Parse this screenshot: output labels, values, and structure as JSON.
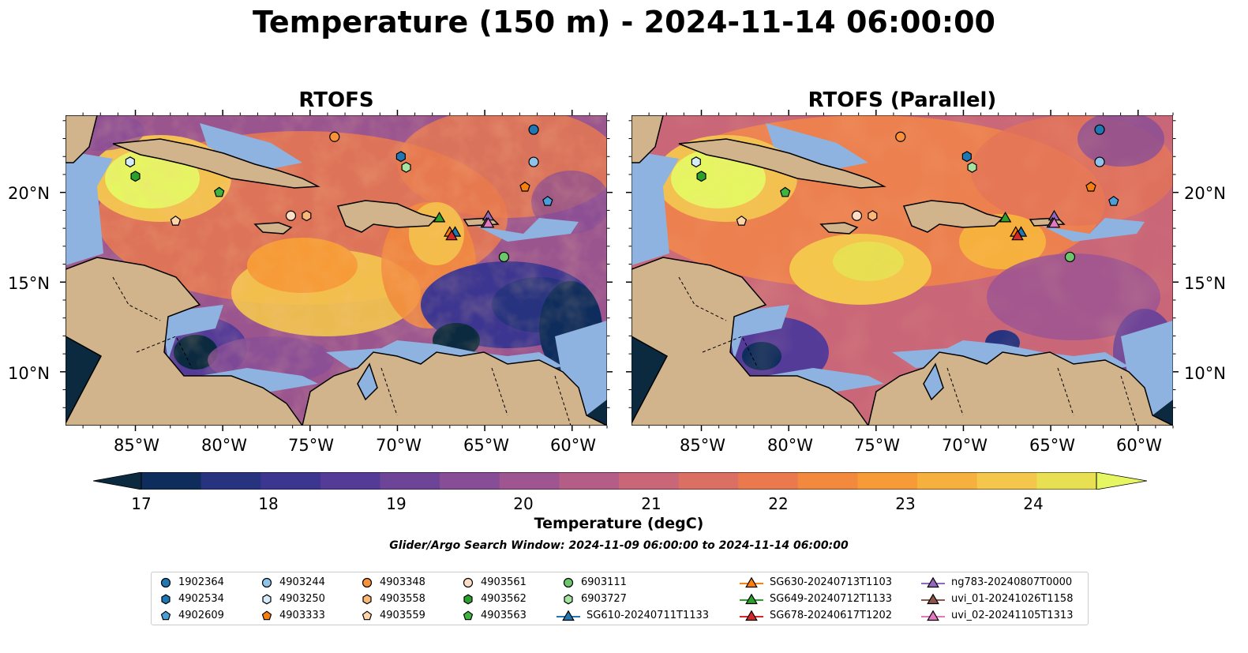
{
  "figure": {
    "title": "Temperature (150 m) - 2024-11-14 06:00:00",
    "panels": [
      {
        "title": "RTOFS"
      },
      {
        "title": "RTOFS (Parallel)"
      }
    ],
    "lon_ticks": [
      "85°W",
      "80°W",
      "75°W",
      "70°W",
      "65°W",
      "60°W"
    ],
    "lat_ticks": [
      "20°N",
      "15°N",
      "10°N"
    ],
    "colorbar": {
      "ticks": [
        "17",
        "18",
        "19",
        "20",
        "21",
        "22",
        "23",
        "24"
      ],
      "label": "Temperature (degC)",
      "colors": [
        "#0b2a3f",
        "#0f2d5c",
        "#27337f",
        "#3d3690",
        "#553b98",
        "#6e4499",
        "#874d96",
        "#9e5590",
        "#b45d86",
        "#c96678",
        "#db6f63",
        "#ea7a4e",
        "#f2893d",
        "#f69b37",
        "#f6b03d",
        "#f4c64b",
        "#e8df52",
        "#e6f562"
      ]
    },
    "search_window": "Glider/Argo Search Window: 2024-11-09 06:00:00 to 2024-11-14 06:00:00",
    "colors": {
      "land": "#d2b48c",
      "shallow": "#8fb3e0",
      "ocean_mid": "#f08c45",
      "warm": "#f3c150",
      "cold": "#2a2f74",
      "deep": "#0b2a3f"
    }
  },
  "legend": [
    {
      "label": "1902364",
      "marker": "circle",
      "color": "#1f77b4"
    },
    {
      "label": "4902534",
      "marker": "hexagon",
      "color": "#1f77b4"
    },
    {
      "label": "4902609",
      "marker": "pentagon",
      "color": "#4a9fd9"
    },
    {
      "label": "4903244",
      "marker": "circle",
      "color": "#8fc3ea"
    },
    {
      "label": "4903250",
      "marker": "hexagon",
      "color": "#d6ebfa"
    },
    {
      "label": "4903333",
      "marker": "pentagon",
      "color": "#f77f0e"
    },
    {
      "label": "4903348",
      "marker": "circle",
      "color": "#f7913a"
    },
    {
      "label": "4903558",
      "marker": "hexagon",
      "color": "#fbb777"
    },
    {
      "label": "4903559",
      "marker": "pentagon",
      "color": "#fdd5a8"
    },
    {
      "label": "4903561",
      "marker": "circle",
      "color": "#fddec5"
    },
    {
      "label": "4903562",
      "marker": "hexagon",
      "color": "#2ca02c"
    },
    {
      "label": "4903563",
      "marker": "pentagon",
      "color": "#3fb33f"
    },
    {
      "label": "6903111",
      "marker": "circle",
      "color": "#6cc66c"
    },
    {
      "label": "6903727",
      "marker": "hexagon",
      "color": "#a6e3a1"
    },
    {
      "label": "SG610-20240711T1133",
      "marker": "triangle",
      "color": "#1f77b4"
    },
    {
      "label": "SG630-20240713T1103",
      "marker": "triangle",
      "color": "#ff7f0e"
    },
    {
      "label": "SG649-20240712T1133",
      "marker": "triangle",
      "color": "#2ca02c"
    },
    {
      "label": "SG678-20240617T1202",
      "marker": "triangle",
      "color": "#d62728"
    },
    {
      "label": "ng783-20240807T0000",
      "marker": "triangle",
      "color": "#9467bd"
    },
    {
      "label": "uvi_01-20241026T1158",
      "marker": "triangle",
      "color": "#8c564b"
    },
    {
      "label": "uvi_02-20241105T1313",
      "marker": "triangle",
      "color": "#e377c2"
    }
  ],
  "chart_data": {
    "type": "map",
    "title": "Temperature (150 m) - 2024-11-14 06:00:00",
    "extent": {
      "lon": [
        -89,
        -58
      ],
      "lat": [
        7,
        24.3
      ]
    },
    "colorbar_range": [
      17,
      24
    ],
    "observations": [
      {
        "id": "1902364",
        "lon": -62.2,
        "lat": 23.5
      },
      {
        "id": "4902534",
        "lon": -69.8,
        "lat": 22.0
      },
      {
        "id": "4902609",
        "lon": -61.4,
        "lat": 19.5
      },
      {
        "id": "4903244",
        "lon": -62.2,
        "lat": 21.7
      },
      {
        "id": "4903250",
        "lon": -85.3,
        "lat": 21.7
      },
      {
        "id": "4903333",
        "lon": -62.7,
        "lat": 20.3
      },
      {
        "id": "4903348",
        "lon": -73.6,
        "lat": 23.1
      },
      {
        "id": "4903558",
        "lon": -75.2,
        "lat": 18.7
      },
      {
        "id": "4903559",
        "lon": -82.7,
        "lat": 18.4
      },
      {
        "id": "4903561",
        "lon": -76.1,
        "lat": 18.7
      },
      {
        "id": "4903562",
        "lon": -85.0,
        "lat": 20.9
      },
      {
        "id": "4903563",
        "lon": -80.2,
        "lat": 20.0
      },
      {
        "id": "6903111",
        "lon": -63.9,
        "lat": 16.4
      },
      {
        "id": "6903727",
        "lon": -69.5,
        "lat": 21.4
      },
      {
        "id": "SG610-20240711T1133",
        "lon": -66.7,
        "lat": 17.8
      },
      {
        "id": "SG630-20240713T1103",
        "lon": -67.0,
        "lat": 17.8
      },
      {
        "id": "SG649-20240712T1133",
        "lon": -67.6,
        "lat": 18.6
      },
      {
        "id": "SG678-20240617T1202",
        "lon": -66.9,
        "lat": 17.6
      },
      {
        "id": "ng783-20240807T0000",
        "lon": -64.8,
        "lat": 18.7
      },
      {
        "id": "uvi_01-20241026T1158",
        "lon": -64.9,
        "lat": 18.3
      },
      {
        "id": "uvi_02-20241105T1313",
        "lon": -64.8,
        "lat": 18.3
      }
    ]
  }
}
